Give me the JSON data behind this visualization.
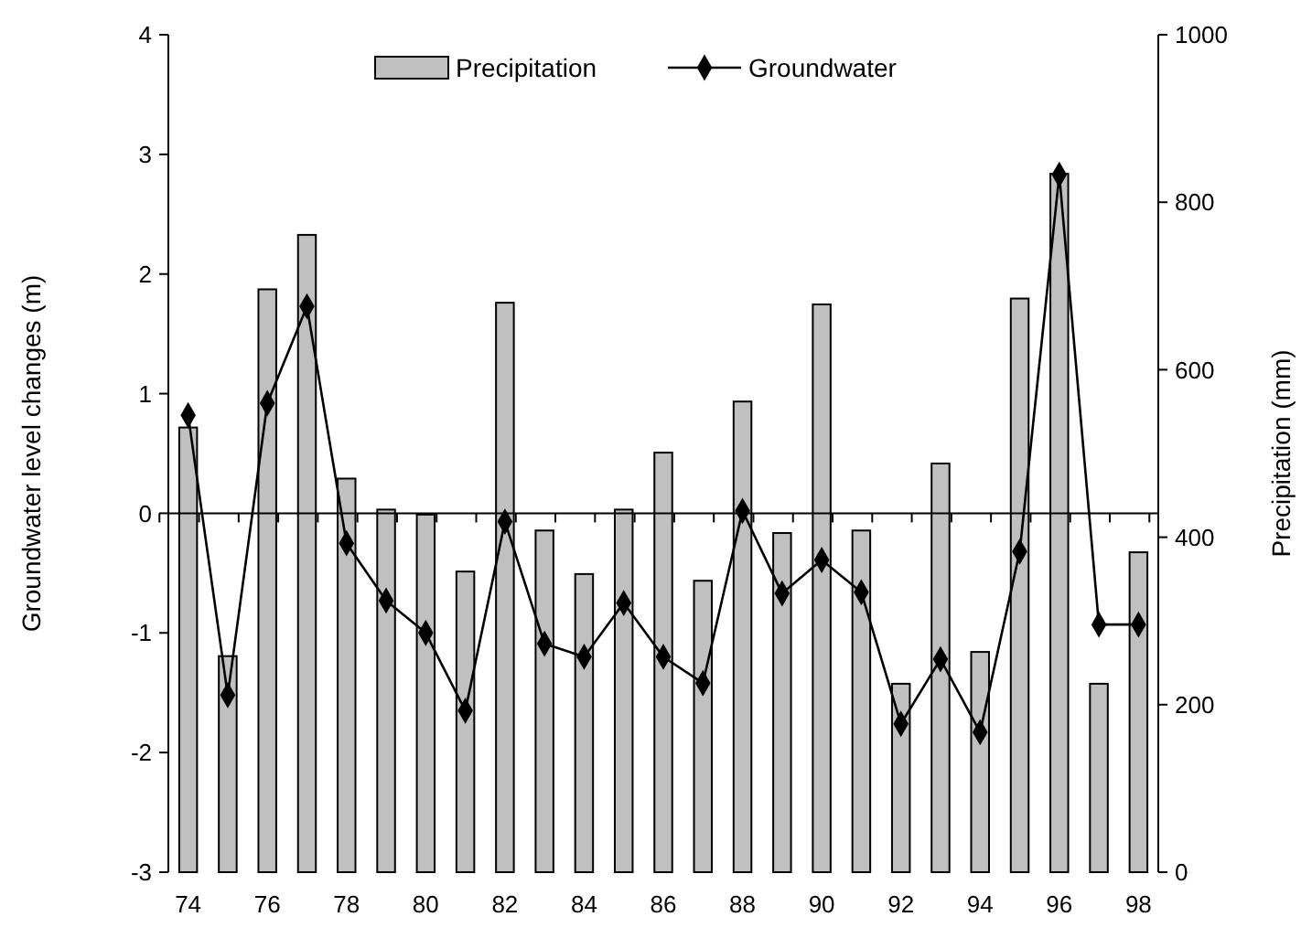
{
  "chart_data": {
    "type": "bar",
    "categories": [
      "74",
      null,
      "76",
      null,
      "78",
      null,
      "80",
      null,
      "82",
      null,
      "84",
      null,
      "86",
      null,
      "88",
      null,
      "90",
      null,
      "92",
      null,
      "94",
      null,
      "96",
      null,
      "98"
    ],
    "series": [
      {
        "name": "Precipitation",
        "axis": "y2",
        "color": "#c0c0c0",
        "values": [
          531,
          258,
          696,
          761,
          470,
          433,
          427,
          359,
          680,
          408,
          356,
          433,
          501,
          348,
          562,
          405,
          678,
          408,
          225,
          488,
          263,
          685,
          834,
          225,
          382
        ]
      },
      {
        "name": "Groundwater",
        "type": "line",
        "color": "#000000",
        "values": [
          0.82,
          -1.52,
          0.92,
          1.73,
          -0.25,
          -0.73,
          -1.0,
          -1.65,
          -0.07,
          -1.09,
          -1.2,
          -0.75,
          -1.2,
          -1.42,
          0.02,
          -0.67,
          -0.39,
          -0.66,
          -1.76,
          -1.22,
          -1.83,
          -0.32,
          2.83,
          -0.93,
          -0.93
        ]
      }
    ],
    "ylabel": "Groundwater level changes (m)",
    "y2label": "Precipitation (mm)",
    "ylim": [
      -3,
      4
    ],
    "yticks": [
      -3,
      -2,
      -1,
      0,
      1,
      2,
      3,
      4
    ],
    "y2lim": [
      0,
      1000
    ],
    "y2ticks": [
      0,
      200,
      400,
      600,
      800,
      1000
    ],
    "legend": "top",
    "marker": "diamond"
  }
}
